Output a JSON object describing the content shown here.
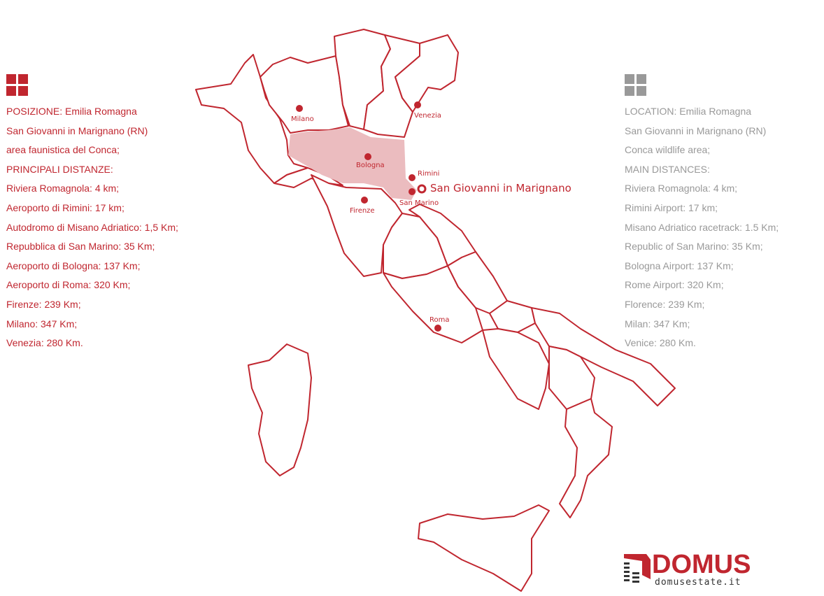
{
  "colors": {
    "accent": "#c0262f",
    "secondary": "#999999",
    "region_highlight": "#ebbcbf"
  },
  "left_panel": {
    "icon": "four-squares-icon",
    "lines": [
      "POSIZIONE: Emilia Romagna",
      "San Giovanni in Marignano (RN)",
      "area faunistica del Conca;",
      "PRINCIPALI DISTANZE:",
      "Riviera Romagnola: 4 km;",
      "Aeroporto di Rimini: 17 km;",
      "Autodromo di Misano Adriatico: 1,5 Km;",
      "Repubblica di San Marino: 35 Km;",
      "Aeroporto di Bologna: 137 Km;",
      "Aeroporto di Roma: 320 Km;",
      "Firenze: 239 Km;",
      "Milano: 347 Km;",
      "Venezia: 280 Km."
    ]
  },
  "right_panel": {
    "icon": "four-squares-icon",
    "lines": [
      "LOCATION: Emilia Romagna",
      "San Giovanni in Marignano (RN)",
      "Conca wildlife area;",
      "MAIN DISTANCES:",
      "Riviera Romagnola: 4 km;",
      "Rimini Airport: 17 km;",
      "Misano Adriatico racetrack: 1.5 Km;",
      "Republic of San Marino: 35 Km;",
      "Bologna Airport: 137 Km;",
      "Rome Airport: 320 Km;",
      "Florence: 239 Km;",
      "Milan: 347 Km;",
      "Venice: 280 Km."
    ]
  },
  "map": {
    "highlighted_region": "Emilia Romagna",
    "cities": {
      "milano": "Milano",
      "venezia": "Venezia",
      "bologna": "Bologna",
      "rimini": "Rimini",
      "san_marino": "San Marino",
      "firenze": "Firenze",
      "roma": "Roma"
    },
    "target": "San Giovanni in Marignano"
  },
  "logo": {
    "name": "DOMUS",
    "site": "domusestate.it"
  }
}
